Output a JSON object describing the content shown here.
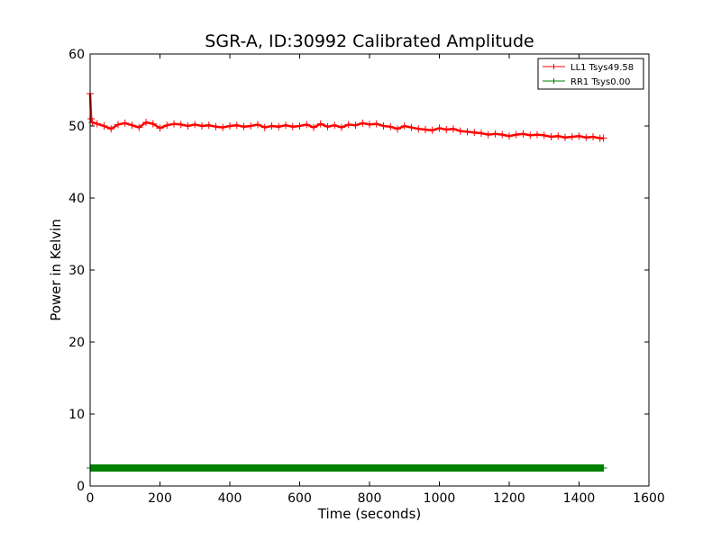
{
  "chart_data": {
    "type": "line",
    "title": "SGR-A, ID:30992 Calibrated Amplitude",
    "xlabel": "Time (seconds)",
    "ylabel": "Power in Kelvin",
    "xlim": [
      0,
      1600
    ],
    "ylim": [
      0,
      60
    ],
    "xticks": [
      0,
      200,
      400,
      600,
      800,
      1000,
      1200,
      1400,
      1600
    ],
    "yticks": [
      0,
      10,
      20,
      30,
      40,
      50,
      60
    ],
    "grid": false,
    "legend_position": "top-right",
    "series": [
      {
        "name": "LL1 Tsys49.58",
        "color": "#ff0000",
        "marker": "+",
        "x": [
          0,
          3,
          6,
          20,
          40,
          60,
          80,
          100,
          120,
          140,
          160,
          180,
          200,
          220,
          240,
          260,
          280,
          300,
          320,
          340,
          360,
          380,
          400,
          420,
          440,
          460,
          480,
          500,
          520,
          540,
          560,
          580,
          600,
          620,
          640,
          660,
          680,
          700,
          720,
          740,
          760,
          780,
          800,
          820,
          840,
          860,
          880,
          900,
          920,
          940,
          960,
          980,
          1000,
          1020,
          1040,
          1060,
          1080,
          1100,
          1120,
          1140,
          1160,
          1180,
          1200,
          1220,
          1240,
          1260,
          1280,
          1300,
          1320,
          1340,
          1360,
          1380,
          1400,
          1420,
          1440,
          1460,
          1470
        ],
        "y": [
          54.5,
          51,
          50.5,
          50.3,
          50,
          49.6,
          50.2,
          50.4,
          50.1,
          49.8,
          50.5,
          50.3,
          49.7,
          50.1,
          50.3,
          50.2,
          50,
          50.2,
          50,
          50.1,
          49.9,
          49.8,
          50,
          50.1,
          49.9,
          50,
          50.2,
          49.8,
          50,
          49.9,
          50.1,
          49.9,
          50,
          50.2,
          49.8,
          50.3,
          49.9,
          50.1,
          49.8,
          50.2,
          50.1,
          50.4,
          50.2,
          50.3,
          50,
          49.9,
          49.6,
          50,
          49.8,
          49.6,
          49.5,
          49.4,
          49.7,
          49.5,
          49.6,
          49.3,
          49.2,
          49.1,
          49,
          48.8,
          48.9,
          48.8,
          48.6,
          48.8,
          48.9,
          48.7,
          48.8,
          48.7,
          48.5,
          48.6,
          48.4,
          48.5,
          48.6,
          48.4,
          48.5,
          48.3,
          48.3
        ]
      },
      {
        "name": "RR1 Tsys0.00",
        "color": "#008000",
        "marker": "+",
        "x": [
          0,
          200,
          400,
          600,
          800,
          1000,
          1200,
          1400,
          1470
        ],
        "y": [
          2.5,
          2.5,
          2.5,
          2.5,
          2.5,
          2.5,
          2.5,
          2.5,
          2.5
        ]
      }
    ]
  }
}
